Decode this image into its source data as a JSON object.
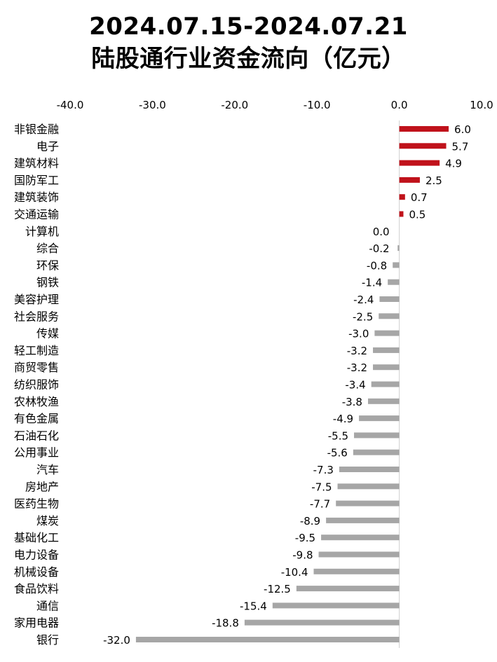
{
  "title_line1": "2024.07.15-2024.07.21",
  "title_line2": "陆股通行业资金流向（亿元）",
  "chart_data": {
    "type": "bar",
    "orientation": "horizontal",
    "title": "2024.07.15-2024.07.21 陆股通行业资金流向（亿元）",
    "xlim": [
      -40,
      10
    ],
    "x_ticks": [
      "-40.0",
      "-30.0",
      "-20.0",
      "-10.0",
      "0.0",
      "10.0"
    ],
    "x_tick_values": [
      -40,
      -30,
      -20,
      -10,
      0,
      10
    ],
    "axis_position": "top",
    "grid": false,
    "positive_color": "#c0121b",
    "negative_color": "#a6a6a6",
    "categories": [
      "非银金融",
      "电子",
      "建筑材料",
      "国防军工",
      "建筑装饰",
      "交通运输",
      "计算机",
      "综合",
      "环保",
      "钢铁",
      "美容护理",
      "社会服务",
      "传媒",
      "轻工制造",
      "商贸零售",
      "纺织服饰",
      "农林牧渔",
      "有色金属",
      "石油石化",
      "公用事业",
      "汽车",
      "房地产",
      "医药生物",
      "煤炭",
      "基础化工",
      "电力设备",
      "机械设备",
      "食品饮料",
      "通信",
      "家用电器",
      "银行"
    ],
    "values": [
      6.0,
      5.7,
      4.9,
      2.5,
      0.7,
      0.5,
      0.0,
      -0.2,
      -0.8,
      -1.4,
      -2.4,
      -2.5,
      -3.0,
      -3.2,
      -3.2,
      -3.4,
      -3.8,
      -4.9,
      -5.5,
      -5.6,
      -7.3,
      -7.5,
      -7.7,
      -8.9,
      -9.5,
      -9.8,
      -10.4,
      -12.5,
      -15.4,
      -18.8,
      -32.0
    ],
    "value_labels": [
      "6.0",
      "5.7",
      "4.9",
      "2.5",
      "0.7",
      "0.5",
      "0.0",
      "-0.2",
      "-0.8",
      "-1.4",
      "-2.4",
      "-2.5",
      "-3.0",
      "-3.2",
      "-3.2",
      "-3.4",
      "-3.8",
      "-4.9",
      "-5.5",
      "-5.6",
      "-7.3",
      "-7.5",
      "-7.7",
      "-8.9",
      "-9.5",
      "-9.8",
      "-10.4",
      "-12.5",
      "-15.4",
      "-18.8",
      "-32.0"
    ]
  }
}
